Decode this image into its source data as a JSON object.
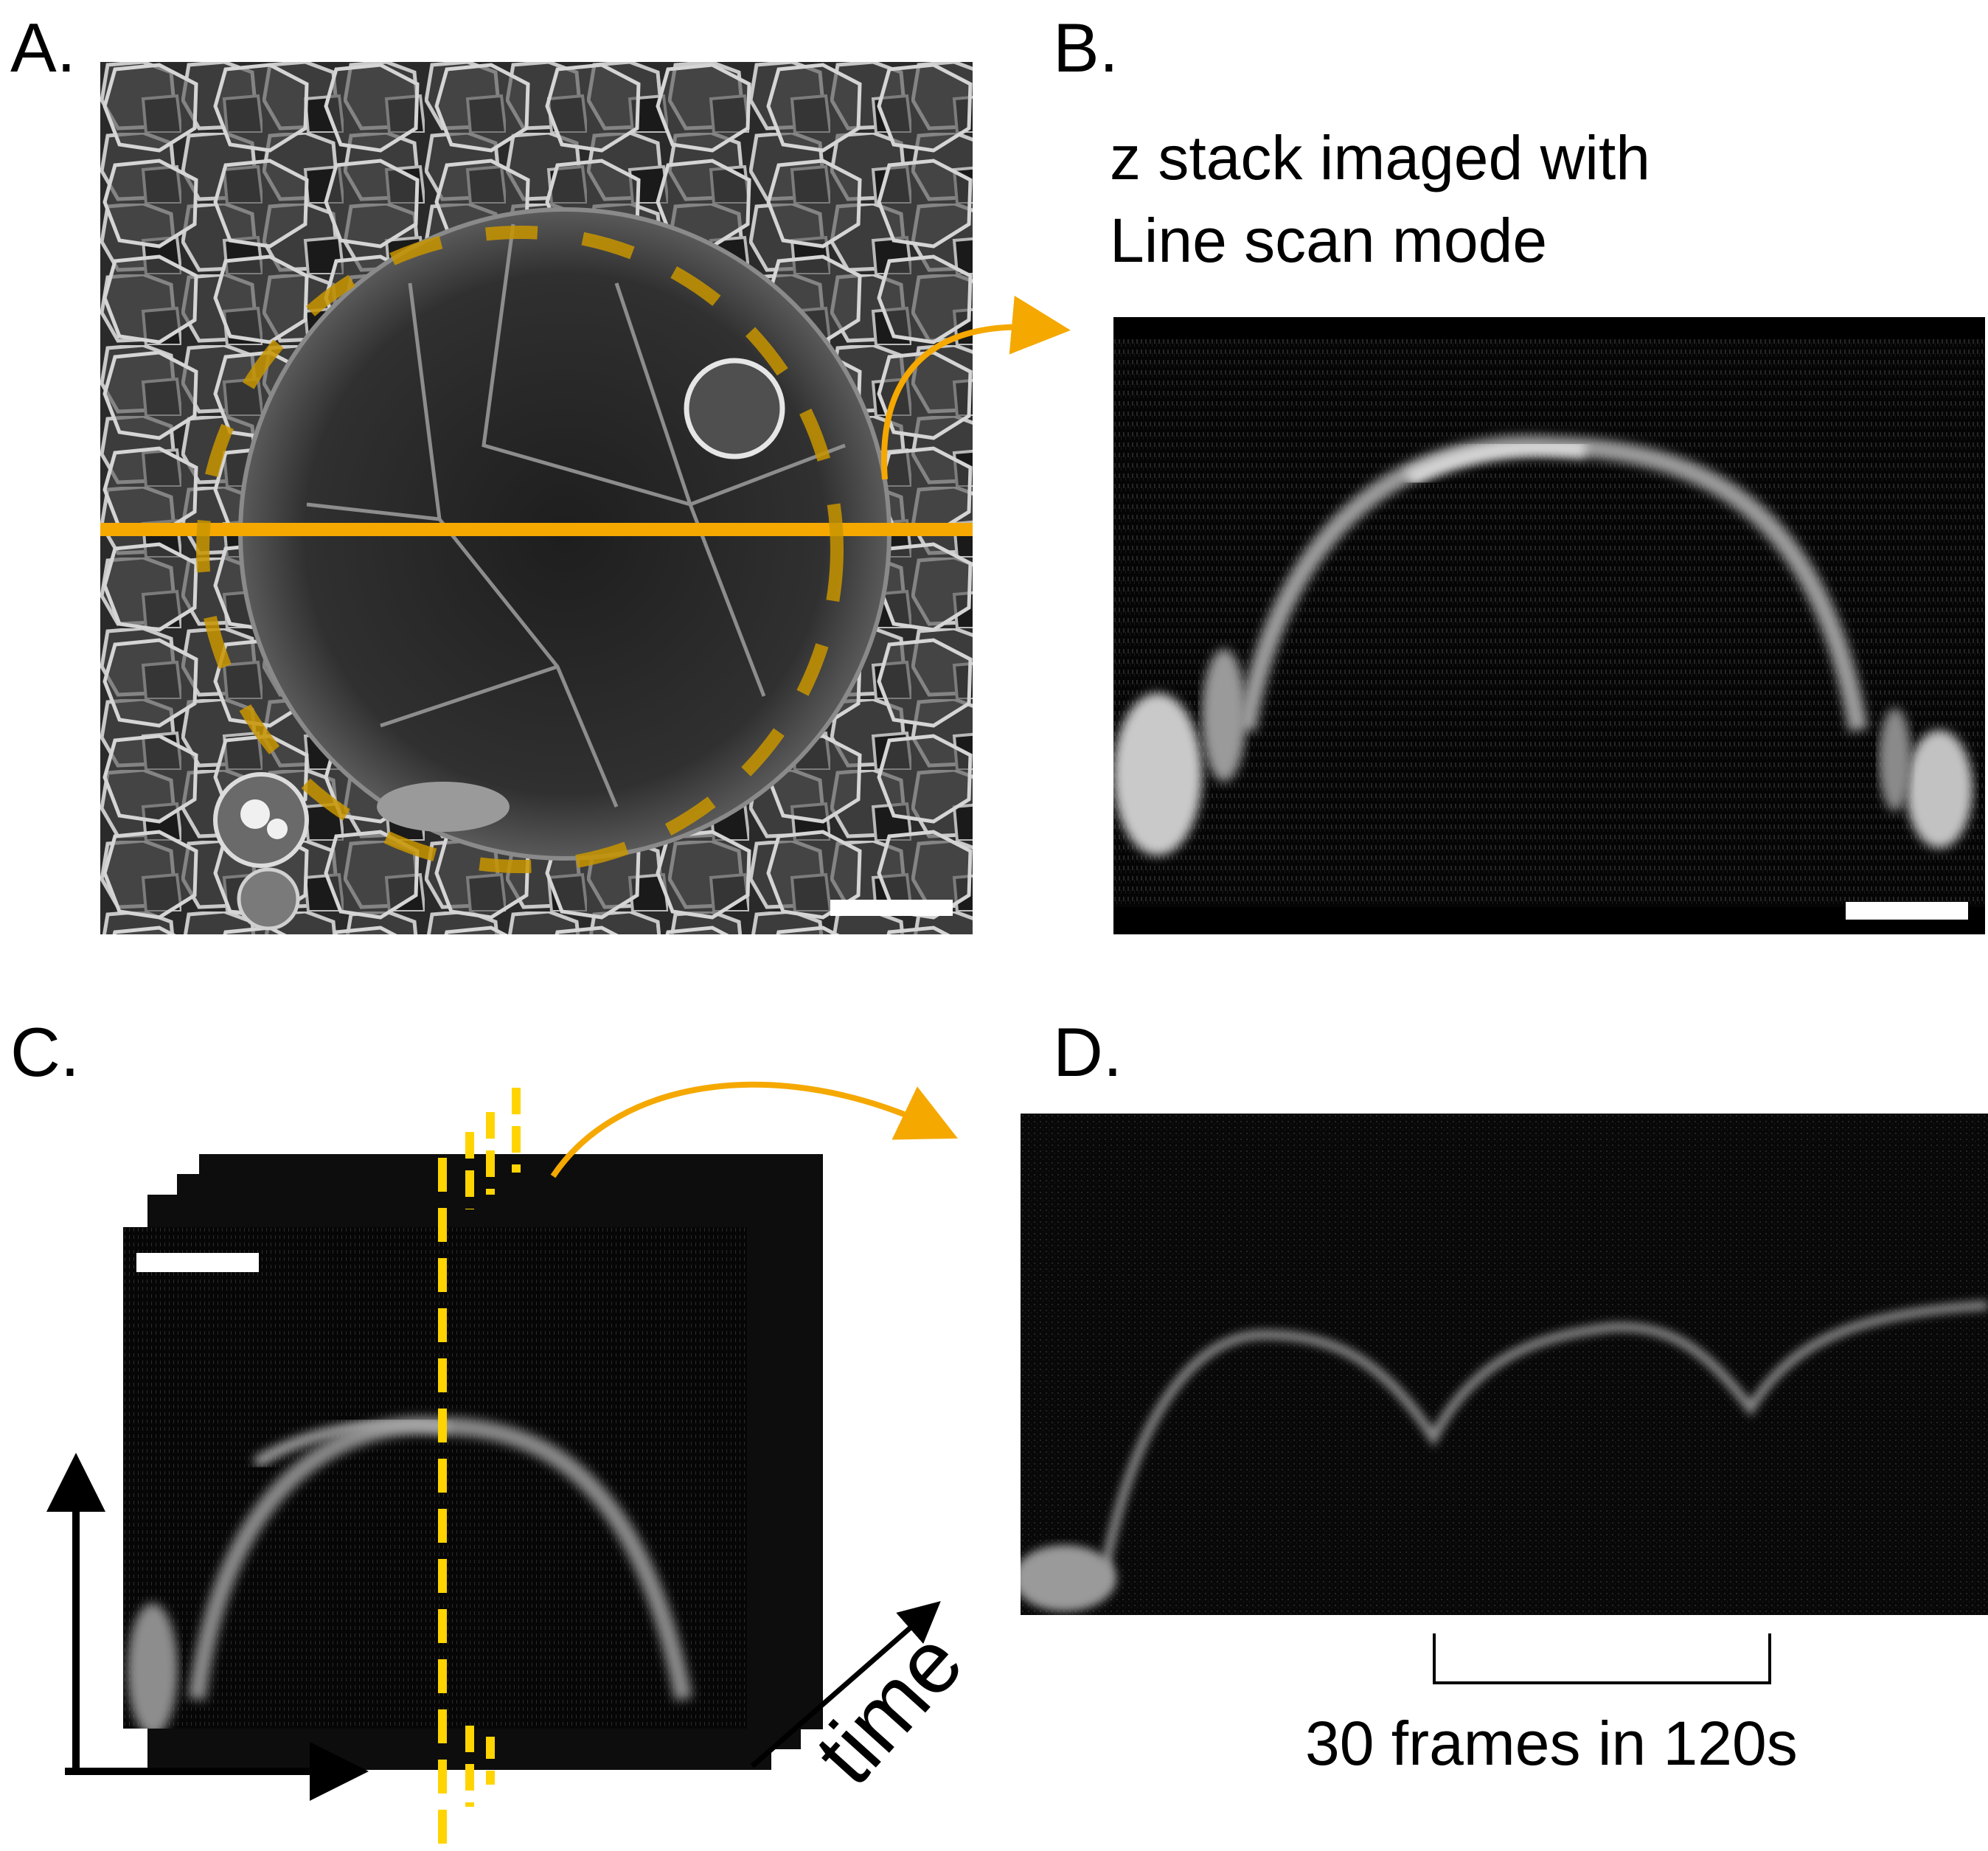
{
  "panels": {
    "a": {
      "label": "A."
    },
    "b": {
      "label": "B.",
      "caption_line1": "z stack imaged with",
      "caption_line2": "Line scan mode"
    },
    "c": {
      "label": "C.",
      "time_label": "time"
    },
    "d": {
      "label": "D.",
      "frames_label": "30 frames in 120s"
    }
  },
  "colors": {
    "accent_orange": "#f5a800",
    "accent_yellow": "#ffd400",
    "image_background": "#0b0b0b",
    "cell_membrane": "#d8d8d8",
    "scale_bar": "#ffffff"
  },
  "icons": [
    "arrow-icon",
    "dashed-circle",
    "scale-bar"
  ]
}
